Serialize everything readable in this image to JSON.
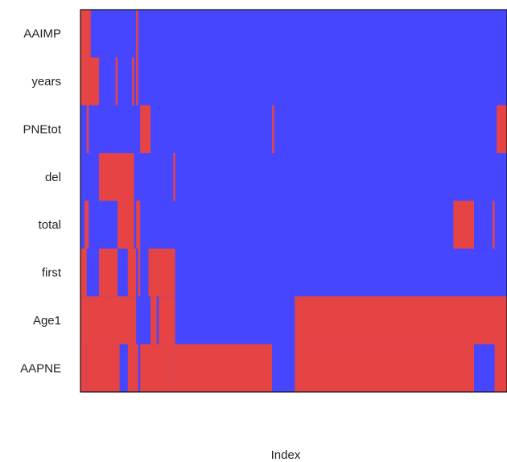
{
  "chart_data": {
    "type": "heatmap",
    "title": "",
    "xlabel": "Index",
    "ylabel": "",
    "x_tick_labels": [],
    "y_categories": [
      "AAIMP",
      "years",
      "PNEtot",
      "del",
      "total",
      "first",
      "Age1",
      "AAPNE"
    ],
    "legend": "none",
    "grid": false,
    "colors": {
      "high": "#e64444",
      "low": "#4646ff",
      "axis": "#111111",
      "background": "#ffffff"
    },
    "index_range": [
      0,
      207
    ],
    "rows": [
      {
        "name": "AAIMP",
        "high_index_ranges": [
          [
            0,
            5
          ],
          [
            27,
            28
          ]
        ]
      },
      {
        "name": "years",
        "high_index_ranges": [
          [
            0,
            9
          ],
          [
            17,
            18
          ],
          [
            25,
            26
          ],
          [
            27,
            28
          ]
        ]
      },
      {
        "name": "PNEtot",
        "high_index_ranges": [
          [
            3,
            4
          ],
          [
            29,
            34
          ],
          [
            93,
            94
          ],
          [
            202,
            207
          ]
        ]
      },
      {
        "name": "del",
        "high_index_ranges": [
          [
            9,
            26
          ],
          [
            45,
            46
          ]
        ]
      },
      {
        "name": "total",
        "high_index_ranges": [
          [
            2,
            4
          ],
          [
            18,
            26
          ],
          [
            27,
            29
          ],
          [
            181,
            191
          ],
          [
            200,
            201
          ]
        ]
      },
      {
        "name": "first",
        "high_index_ranges": [
          [
            0,
            3
          ],
          [
            9,
            18
          ],
          [
            23,
            27
          ],
          [
            28,
            29
          ],
          [
            33,
            46
          ]
        ]
      },
      {
        "name": "Age1",
        "high_index_ranges": [
          [
            0,
            27
          ],
          [
            34,
            37
          ],
          [
            38,
            46
          ],
          [
            104,
            207
          ]
        ]
      },
      {
        "name": "AAPNE",
        "high_index_ranges": [
          [
            0,
            3
          ],
          [
            3,
            19
          ],
          [
            23,
            26
          ],
          [
            26,
            28
          ],
          [
            29,
            33
          ],
          [
            33,
            46
          ],
          [
            46,
            93
          ],
          [
            104,
            191
          ],
          [
            201,
            207
          ]
        ]
      }
    ]
  }
}
